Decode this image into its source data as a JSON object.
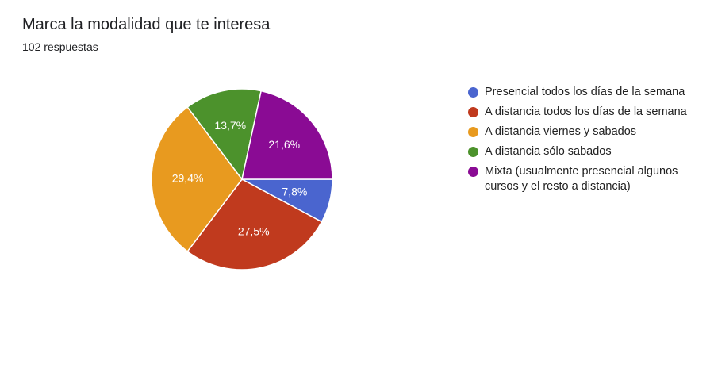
{
  "header": {
    "title": "Marca la modalidad que te interesa",
    "subtitle": "102 respuestas"
  },
  "chart_data": {
    "type": "pie",
    "title": "Marca la modalidad que te interesa",
    "subtitle": "102 respuestas",
    "legend_position": "right",
    "slices": [
      {
        "label": "Presencial todos los días de la semana",
        "value": 7.8,
        "display": "7,8%",
        "color": "#4a65cf"
      },
      {
        "label": "A distancia todos los días de la semana",
        "value": 27.5,
        "display": "27,5%",
        "color": "#c03a1e"
      },
      {
        "label": "A distancia viernes y sabados",
        "value": 29.4,
        "display": "29,4%",
        "color": "#e89a1f"
      },
      {
        "label": "A distancia sólo sabados",
        "value": 13.7,
        "display": "13,7%",
        "color": "#4c922c"
      },
      {
        "label": "Mixta (usualmente presencial algunos cursos y el resto a distancia)",
        "value": 21.6,
        "display": "21,6%",
        "color": "#8a0b94"
      }
    ]
  }
}
